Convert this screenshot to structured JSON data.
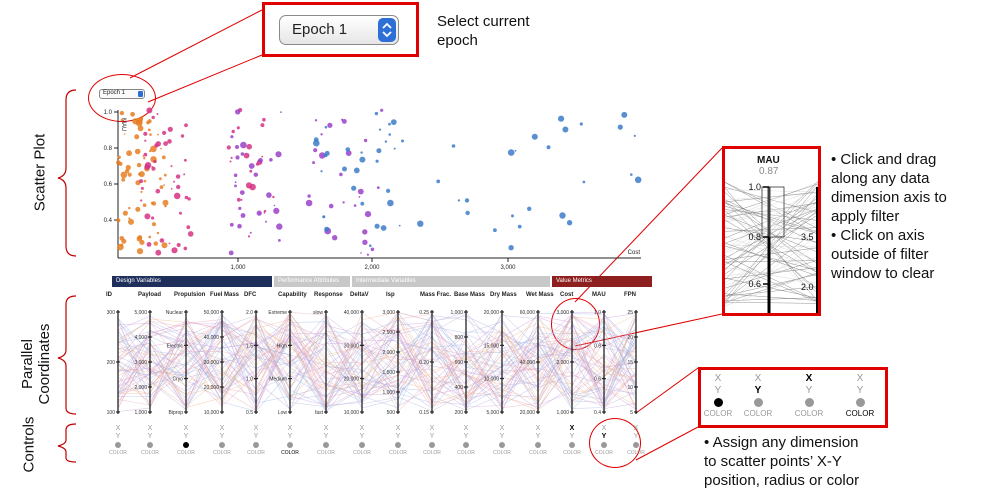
{
  "epoch_control": {
    "label": "Epoch 1"
  },
  "section_labels": {
    "scatter": "Scatter Plot",
    "parallel_line1": "Parallel",
    "parallel_line2": "Coordinates",
    "controls": "Controls"
  },
  "callouts": {
    "epoch": [
      "Select current",
      "epoch"
    ],
    "filter": [
      "• Click and drag",
      "along any data",
      "dimension axis to",
      "apply filter",
      "• Click on axis",
      "outside of filter",
      "window to clear"
    ],
    "assign": [
      "• Assign any dimension",
      "to scatter points’ X-Y",
      "position, radius or color"
    ]
  },
  "scatter": {
    "y_axis_label": "MAU",
    "y_ticks": [
      "1.0",
      "0.8",
      "0.6",
      "0.4"
    ],
    "x_ticks": [
      "1,000",
      "2,000",
      "3,000"
    ],
    "x_axis_label": "Cost",
    "colors": {
      "orange": "#e67e22",
      "pink": "#d63384",
      "purple": "#9b3fc9",
      "blue": "#3d7cc9"
    }
  },
  "groups": [
    {
      "label": "Design Variables",
      "color": "#1f2f5c"
    },
    {
      "label": "Performance Attributes",
      "color": "#c8c8c8"
    },
    {
      "label": "Intermediate Variables",
      "color": "#c8c8c8"
    },
    {
      "label": "Value Metrics",
      "color": "#8e1f1f"
    }
  ],
  "dimensions": [
    {
      "label": "ID",
      "ticks": [
        "300",
        "200",
        "100"
      ]
    },
    {
      "label": "Payload",
      "ticks": [
        "5,000",
        "4,000",
        "3,000",
        "2,000",
        "1,000"
      ]
    },
    {
      "label": "Propulsion",
      "ticks": [
        "Nuclear",
        "Electric",
        "Cryo",
        "Biprop"
      ]
    },
    {
      "label": "Fuel Mass",
      "ticks": [
        "50,000",
        "40,000",
        "30,000",
        "20,000",
        "10,000"
      ]
    },
    {
      "label": "DFC",
      "ticks": [
        "2.0",
        "1.5",
        "1.0",
        "0.5"
      ]
    },
    {
      "label": "Capability",
      "ticks": [
        "Extreme",
        "High",
        "Medium",
        "Low"
      ]
    },
    {
      "label": "Response",
      "ticks": [
        "slow",
        "fast"
      ]
    },
    {
      "label": "DeltaV",
      "ticks": [
        "40,000",
        "30,000",
        "20,000",
        "10,000"
      ]
    },
    {
      "label": "Isp",
      "ticks": [
        "3,000",
        "2,500",
        "2,000",
        "1,500",
        "1,000",
        "500"
      ]
    },
    {
      "label": "Mass Frac.",
      "ticks": [
        "0.25",
        "0.20",
        "0.15"
      ]
    },
    {
      "label": "Base Mass",
      "ticks": [
        "1,000",
        "800",
        "600",
        "400",
        "200"
      ]
    },
    {
      "label": "Dry Mass",
      "ticks": [
        "20,000",
        "15,000",
        "10,000",
        "5,000"
      ]
    },
    {
      "label": "Wet Mass",
      "ticks": [
        "60,000",
        "40,000",
        "20,000"
      ]
    },
    {
      "label": "Cost",
      "ticks": [
        "3,000",
        "2,000",
        "1,000"
      ]
    },
    {
      "label": "MAU",
      "ticks": [
        "1.0",
        "0.8",
        "0.6",
        "0.4"
      ]
    },
    {
      "label": "FPN",
      "ticks": [
        "25",
        "20",
        "15",
        "10",
        "5"
      ]
    }
  ],
  "controls": {
    "x_label": "X",
    "y_label": "Y",
    "color_label": "COLOR"
  },
  "zoom_filter": {
    "title": "MAU",
    "value": "0.87",
    "ticks": [
      "1.0",
      "0.8",
      "0.6"
    ],
    "side_ticks": [
      "3.5",
      "2.0"
    ]
  },
  "zoom_controls": [
    {
      "x": "X",
      "y": "Y",
      "color": "COLOR",
      "state": "color"
    },
    {
      "x": "X",
      "y": "Y",
      "color": "COLOR",
      "state": "y"
    },
    {
      "x": "X",
      "y": "Y",
      "color": "COLOR",
      "state": "x"
    },
    {
      "x": "X",
      "y": "Y",
      "color": "COLOR",
      "state": "none"
    }
  ]
}
